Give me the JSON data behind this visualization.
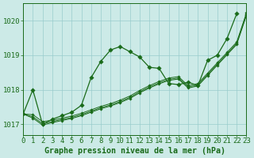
{
  "background_color": "#cceae7",
  "grid_color": "#99cccc",
  "line_color": "#1a6b1a",
  "title": "Graphe pression niveau de la mer (hPa)",
  "xlim": [
    0,
    23
  ],
  "ylim": [
    1016.7,
    1020.5
  ],
  "yticks": [
    1017,
    1018,
    1019,
    1020
  ],
  "xticks": [
    0,
    1,
    2,
    3,
    4,
    5,
    6,
    7,
    8,
    9,
    10,
    11,
    12,
    13,
    14,
    15,
    16,
    17,
    18,
    19,
    20,
    21,
    22,
    23
  ],
  "tick_fontsize": 6.5,
  "title_fontsize": 7.2,
  "main_x": [
    0,
    1,
    2,
    3,
    4,
    5,
    6,
    7,
    8,
    9,
    10,
    11,
    12,
    13,
    14,
    15,
    16,
    17,
    18,
    19,
    20,
    21,
    22
  ],
  "main_y": [
    1017.3,
    1018.0,
    1017.0,
    1017.15,
    1017.25,
    1017.35,
    1017.55,
    1018.35,
    1018.82,
    1019.15,
    1019.25,
    1019.1,
    1018.95,
    1018.65,
    1018.62,
    1018.18,
    1018.15,
    1018.22,
    1018.12,
    1018.85,
    1019.0,
    1019.48,
    1020.2
  ],
  "line2_x": [
    0,
    1,
    2,
    3,
    4,
    5,
    6,
    7,
    8,
    9,
    10,
    11,
    12,
    13,
    14,
    15,
    16,
    17,
    18,
    19,
    20,
    21,
    22,
    23
  ],
  "line2_y": [
    1017.3,
    1017.28,
    1017.08,
    1017.12,
    1017.18,
    1017.24,
    1017.32,
    1017.42,
    1017.52,
    1017.6,
    1017.7,
    1017.82,
    1017.98,
    1018.12,
    1018.24,
    1018.34,
    1018.38,
    1018.12,
    1018.18,
    1018.48,
    1018.78,
    1019.08,
    1019.38,
    1020.22
  ],
  "line3_x": [
    0,
    1,
    2,
    3,
    4,
    5,
    6,
    7,
    8,
    9,
    10,
    11,
    12,
    13,
    14,
    15,
    16,
    17,
    18,
    19,
    20,
    21,
    22,
    23
  ],
  "line3_y": [
    1017.3,
    1017.22,
    1017.02,
    1017.08,
    1017.14,
    1017.2,
    1017.28,
    1017.38,
    1017.48,
    1017.56,
    1017.66,
    1017.78,
    1017.94,
    1018.08,
    1018.2,
    1018.3,
    1018.34,
    1018.08,
    1018.14,
    1018.44,
    1018.74,
    1019.04,
    1019.34,
    1020.18
  ],
  "line4_x": [
    0,
    1,
    2,
    3,
    4,
    5,
    6,
    7,
    8,
    9,
    10,
    11,
    12,
    13,
    14,
    15,
    16,
    17,
    18,
    19,
    20,
    21,
    22,
    23
  ],
  "line4_y": [
    1017.3,
    1017.18,
    1016.98,
    1017.05,
    1017.11,
    1017.17,
    1017.25,
    1017.35,
    1017.45,
    1017.53,
    1017.63,
    1017.75,
    1017.91,
    1018.05,
    1018.17,
    1018.27,
    1018.31,
    1018.05,
    1018.11,
    1018.41,
    1018.71,
    1019.01,
    1019.31,
    1020.15
  ]
}
